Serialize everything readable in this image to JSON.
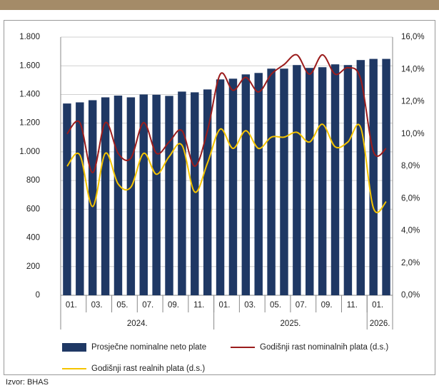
{
  "chart_data": {
    "type": "bar",
    "source": "Izvor: BHAS",
    "categories": [
      "01.",
      null,
      "03.",
      null,
      "05.",
      null,
      "07.",
      null,
      "09.",
      null,
      "11.",
      null,
      "01.",
      null,
      "03.",
      null,
      "05.",
      null,
      "07.",
      null,
      "09.",
      null,
      "11.",
      null,
      "01.",
      null
    ],
    "groups": [
      "2024.",
      "2025.",
      "2026."
    ],
    "ylim": [
      0,
      1800
    ],
    "yticks": [
      0,
      200,
      400,
      600,
      800,
      {
        "value": 1000,
        "label": "1.000"
      },
      {
        "value": 1200,
        "label": "1.200"
      },
      {
        "value": 1400,
        "label": "1.400"
      },
      {
        "value": 1600,
        "label": "1.600"
      },
      {
        "value": 1800,
        "label": "1.800"
      }
    ],
    "y2lim": [
      0,
      16
    ],
    "y2ticks": [
      {
        "value": 0,
        "label": "0,0%"
      },
      {
        "value": 2,
        "label": "2,0%"
      },
      {
        "value": 4,
        "label": "4,0%"
      },
      {
        "value": 6,
        "label": "6,0%"
      },
      {
        "value": 8,
        "label": "8,0%"
      },
      {
        "value": 10,
        "label": "10,0%"
      },
      {
        "value": 12,
        "label": "12,0%"
      },
      {
        "value": 14,
        "label": "14,0%"
      },
      {
        "value": 16,
        "label": "16,0%"
      }
    ],
    "grid": true,
    "series": [
      {
        "name": "Prosječne nominalne neto plate",
        "type": "bar",
        "color": "#1f3864",
        "values": [
          1337,
          1345,
          1360,
          1380,
          1392,
          1380,
          1400,
          1398,
          1390,
          1420,
          1415,
          1435,
          1505,
          1510,
          1540,
          1550,
          1580,
          1580,
          1605,
          1585,
          1590,
          1610,
          1605,
          1640,
          1648,
          1648
        ]
      },
      {
        "name": "Godišnji rast nominalnih plata (d.s.)",
        "type": "line",
        "axis": "y2",
        "color": "#9b1c1c",
        "values": [
          10.0,
          10.7,
          7.6,
          10.7,
          8.8,
          8.5,
          10.7,
          8.8,
          9.5,
          10.2,
          8.0,
          10.2,
          13.7,
          12.7,
          13.5,
          12.6,
          13.7,
          14.3,
          14.9,
          13.7,
          14.9,
          13.7,
          14.1,
          13.4,
          8.9,
          9.1
        ]
      },
      {
        "name": "Godišnji rast realnih plata (d.s.)",
        "type": "line",
        "axis": "y2",
        "color": "#f5c400",
        "values": [
          8.0,
          8.7,
          5.5,
          8.8,
          6.9,
          6.7,
          8.8,
          7.5,
          8.6,
          9.3,
          6.4,
          8.2,
          10.3,
          9.1,
          10.2,
          9.1,
          9.8,
          9.8,
          10.1,
          9.5,
          10.6,
          9.2,
          9.5,
          10.4,
          5.4,
          5.8
        ]
      }
    ]
  }
}
